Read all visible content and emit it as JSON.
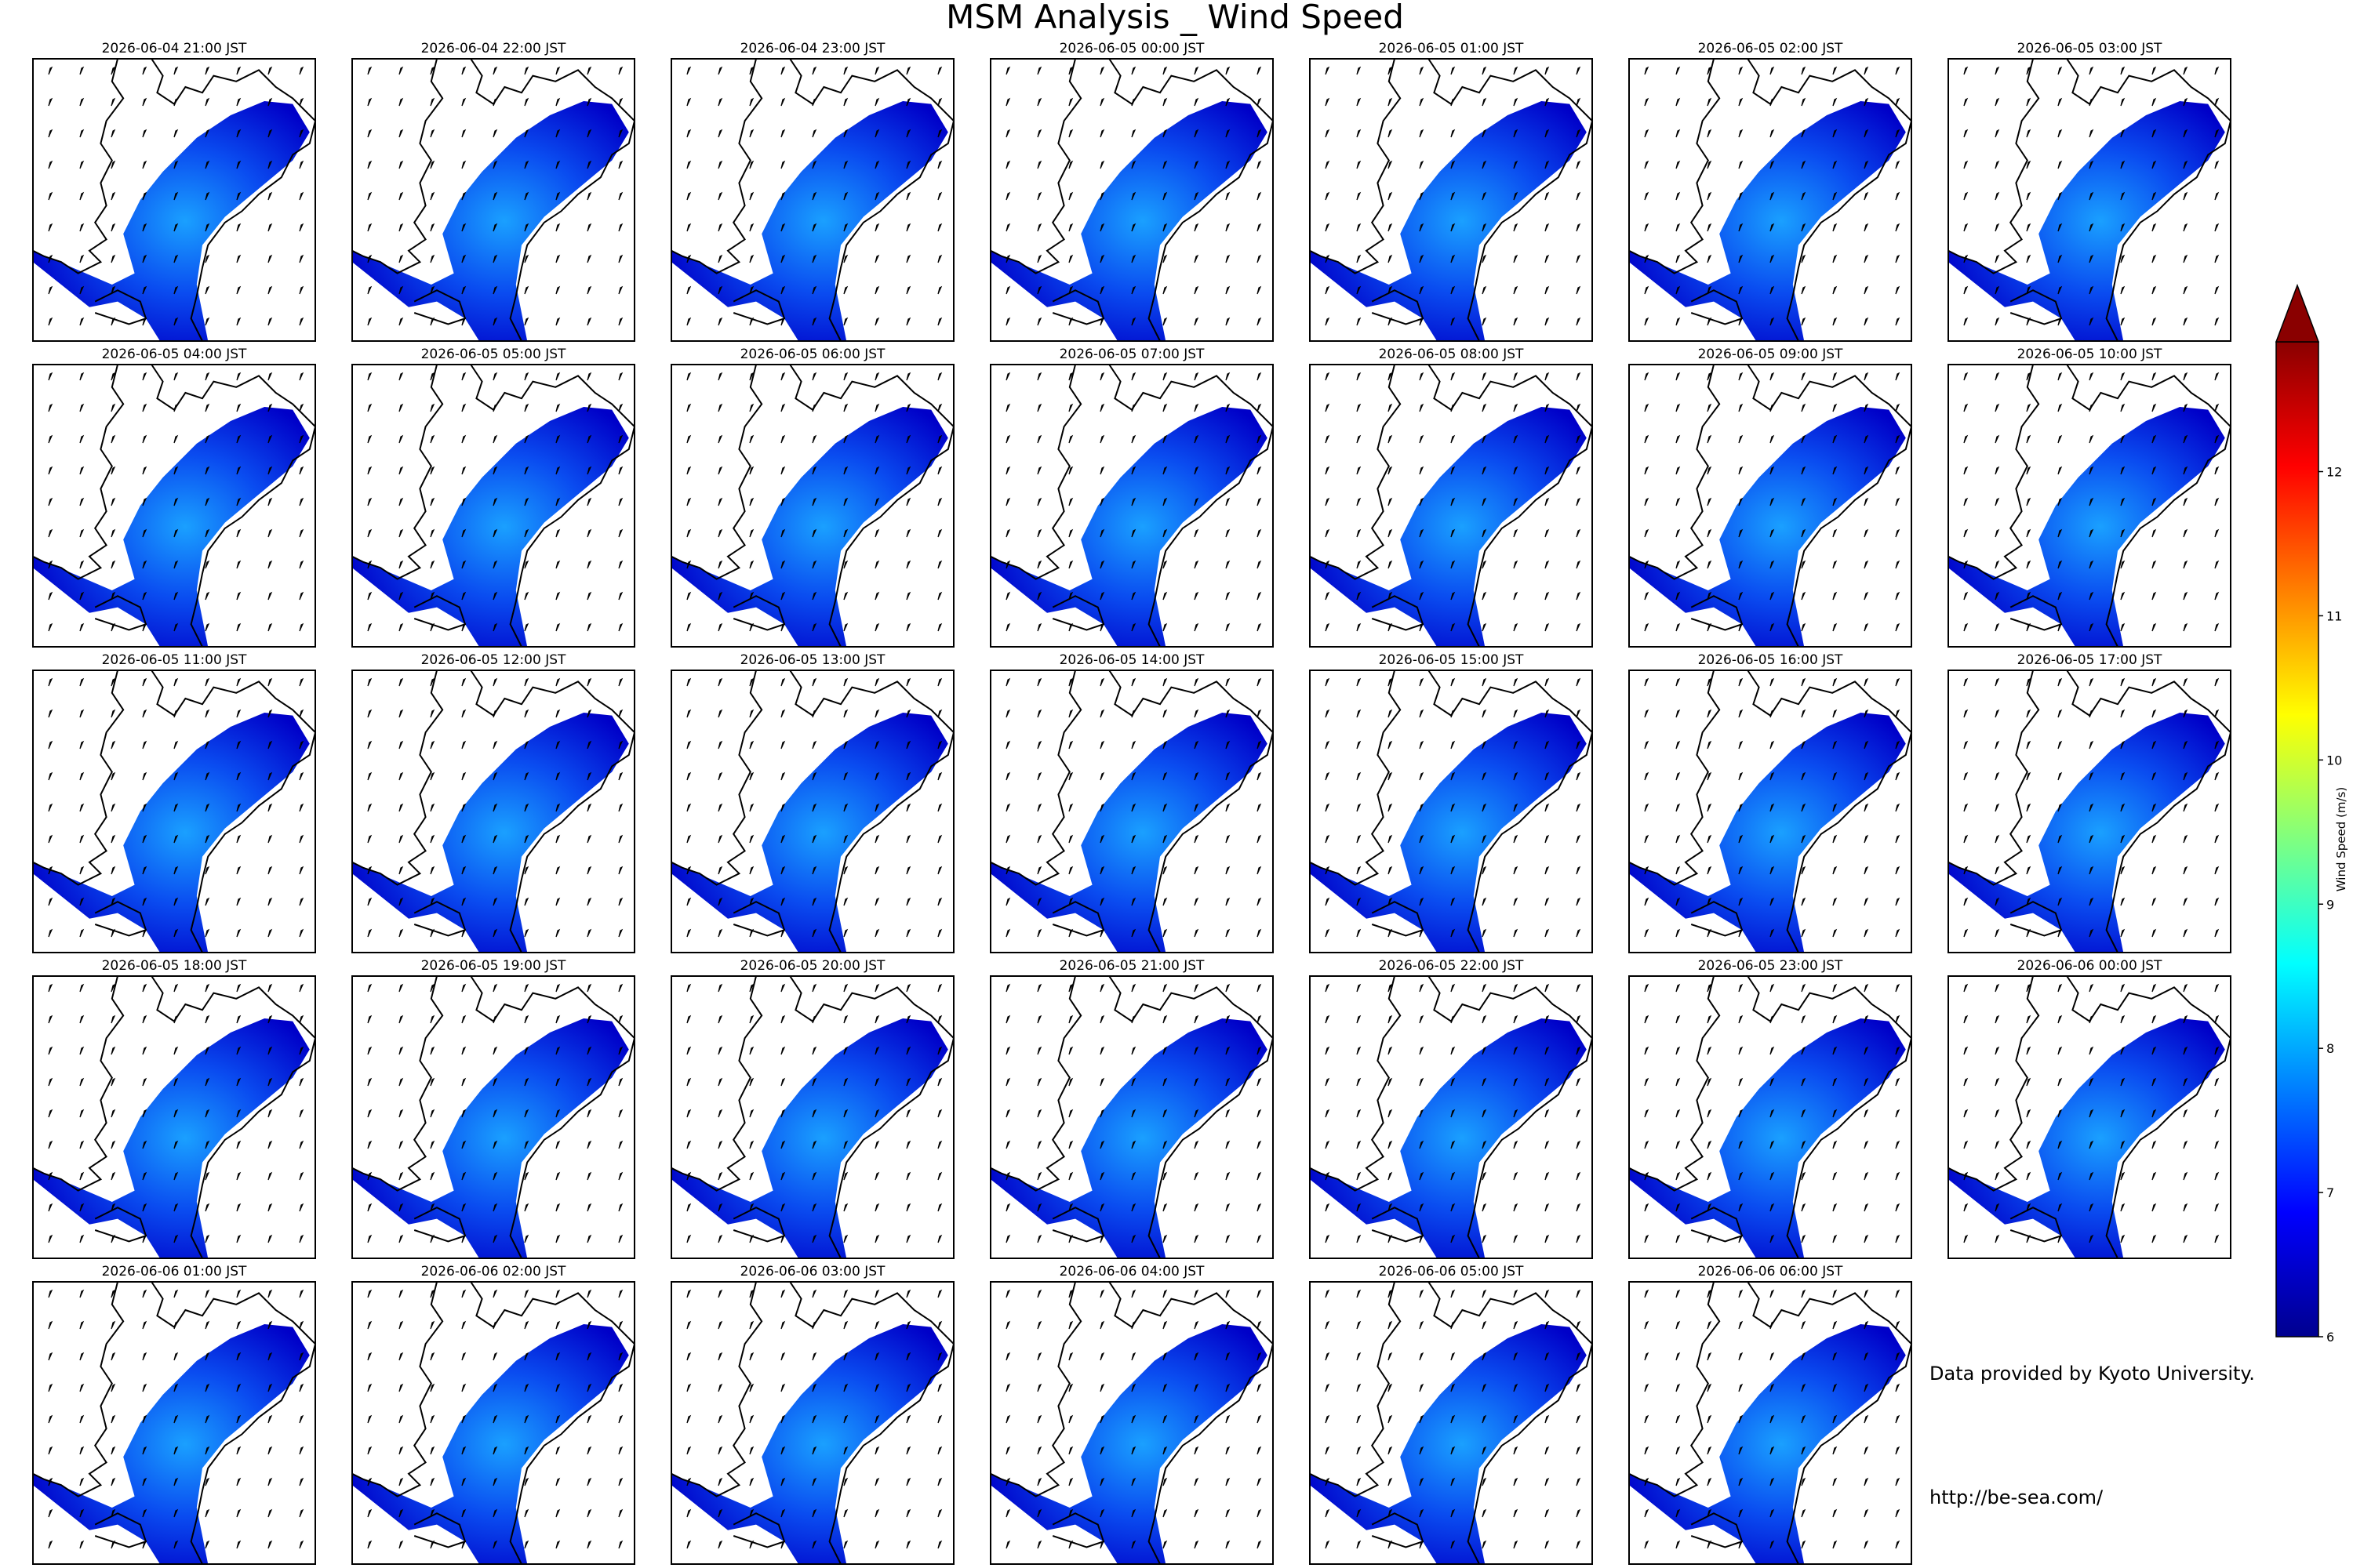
{
  "title": "MSM Analysis _ Wind Speed",
  "panels": [
    {
      "title": "2026-06-04 21:00 JST"
    },
    {
      "title": "2026-06-04 22:00 JST"
    },
    {
      "title": "2026-06-04 23:00 JST"
    },
    {
      "title": "2026-06-05 00:00 JST"
    },
    {
      "title": "2026-06-05 01:00 JST"
    },
    {
      "title": "2026-06-05 02:00 JST"
    },
    {
      "title": "2026-06-05 03:00 JST"
    },
    {
      "title": "2026-06-05 04:00 JST"
    },
    {
      "title": "2026-06-05 05:00 JST"
    },
    {
      "title": "2026-06-05 06:00 JST"
    },
    {
      "title": "2026-06-05 07:00 JST"
    },
    {
      "title": "2026-06-05 08:00 JST"
    },
    {
      "title": "2026-06-05 09:00 JST"
    },
    {
      "title": "2026-06-05 10:00 JST"
    },
    {
      "title": "2026-06-05 11:00 JST"
    },
    {
      "title": "2026-06-05 12:00 JST"
    },
    {
      "title": "2026-06-05 13:00 JST"
    },
    {
      "title": "2026-06-05 14:00 JST"
    },
    {
      "title": "2026-06-05 15:00 JST"
    },
    {
      "title": "2026-06-05 16:00 JST"
    },
    {
      "title": "2026-06-05 17:00 JST"
    },
    {
      "title": "2026-06-05 18:00 JST"
    },
    {
      "title": "2026-06-05 19:00 JST"
    },
    {
      "title": "2026-06-05 20:00 JST"
    },
    {
      "title": "2026-06-05 21:00 JST"
    },
    {
      "title": "2026-06-05 22:00 JST"
    },
    {
      "title": "2026-06-05 23:00 JST"
    },
    {
      "title": "2026-06-06 00:00 JST"
    },
    {
      "title": "2026-06-06 01:00 JST"
    },
    {
      "title": "2026-06-06 02:00 JST"
    },
    {
      "title": "2026-06-06 03:00 JST"
    },
    {
      "title": "2026-06-06 04:00 JST"
    },
    {
      "title": "2026-06-06 05:00 JST"
    },
    {
      "title": "2026-06-06 06:00 JST"
    }
  ],
  "colorbar": {
    "label": "Wind Speed (m/s)",
    "lim": [
      6,
      12.9
    ],
    "ticks": [
      6,
      7,
      8,
      9,
      10,
      11,
      12
    ],
    "colormap": "jet"
  },
  "credits": {
    "source": "Data provided by Kyoto University.",
    "url": "http://be-sea.com/"
  }
}
